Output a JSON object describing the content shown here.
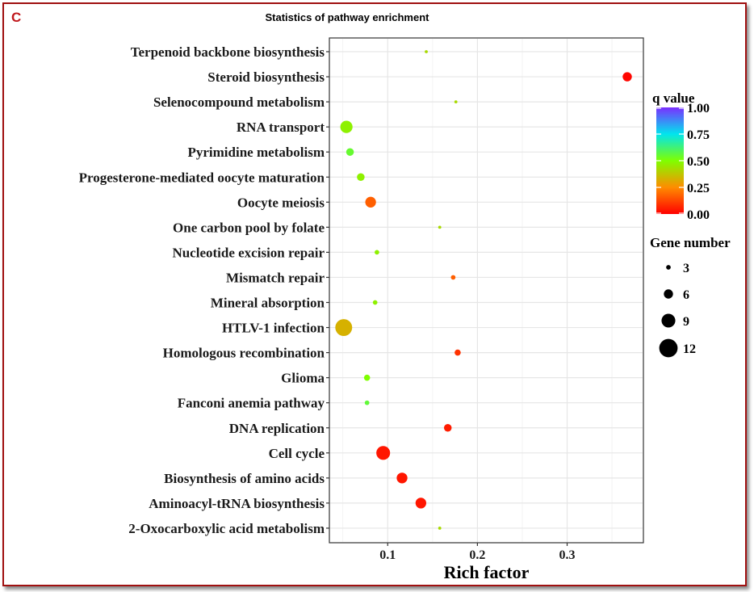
{
  "figure": {
    "panel_letter": "C",
    "frame_color": "#a01010"
  },
  "chart_data": {
    "type": "scatter",
    "title": "Statistics of pathway enrichment",
    "xlabel": "Rich factor",
    "ylabel": "",
    "xlim": [
      0.035,
      0.385
    ],
    "xticks": [
      0.1,
      0.2,
      0.3
    ],
    "xtick_labels": [
      "0.1",
      "0.2",
      "0.3"
    ],
    "grid": true,
    "categories": [
      "Terpenoid backbone biosynthesis",
      "Steroid biosynthesis",
      "Selenocompound metabolism",
      "RNA transport",
      "Pyrimidine metabolism",
      "Progesterone-mediated oocyte maturation",
      "Oocyte meiosis",
      "One carbon pool by folate",
      "Nucleotide excision repair",
      "Mismatch repair",
      "Mineral absorption",
      "HTLV-1 infection",
      "Homologous recombination",
      "Glioma",
      "Fanconi anemia pathway",
      "DNA replication",
      "Cell cycle",
      "Biosynthesis of amino acids",
      "Aminoacyl-tRNA biosynthesis",
      "2-Oxocarboxylic acid metabolism"
    ],
    "points": [
      {
        "pathway": "Terpenoid backbone biosynthesis",
        "rich_factor": 0.143,
        "gene_number": 2,
        "q_value": 0.42
      },
      {
        "pathway": "Steroid biosynthesis",
        "rich_factor": 0.367,
        "gene_number": 6,
        "q_value": 0.01
      },
      {
        "pathway": "Selenocompound metabolism",
        "rich_factor": 0.176,
        "gene_number": 2,
        "q_value": 0.42
      },
      {
        "pathway": "RNA transport",
        "rich_factor": 0.054,
        "gene_number": 8,
        "q_value": 0.47
      },
      {
        "pathway": "Pyrimidine metabolism",
        "rich_factor": 0.058,
        "gene_number": 5,
        "q_value": 0.55
      },
      {
        "pathway": "Progesterone-mediated oocyte maturation",
        "rich_factor": 0.07,
        "gene_number": 5,
        "q_value": 0.47
      },
      {
        "pathway": "Oocyte meiosis",
        "rich_factor": 0.081,
        "gene_number": 7,
        "q_value": 0.17
      },
      {
        "pathway": "One carbon pool by folate",
        "rich_factor": 0.158,
        "gene_number": 2,
        "q_value": 0.42
      },
      {
        "pathway": "Nucleotide excision repair",
        "rich_factor": 0.088,
        "gene_number": 3,
        "q_value": 0.47
      },
      {
        "pathway": "Mismatch repair",
        "rich_factor": 0.173,
        "gene_number": 3,
        "q_value": 0.17
      },
      {
        "pathway": "Mineral absorption",
        "rich_factor": 0.086,
        "gene_number": 3,
        "q_value": 0.47
      },
      {
        "pathway": "HTLV-1 infection",
        "rich_factor": 0.051,
        "gene_number": 11,
        "q_value": 0.33
      },
      {
        "pathway": "Homologous recombination",
        "rich_factor": 0.178,
        "gene_number": 4,
        "q_value": 0.09
      },
      {
        "pathway": "Glioma",
        "rich_factor": 0.077,
        "gene_number": 4,
        "q_value": 0.5
      },
      {
        "pathway": "Fanconi anemia pathway",
        "rich_factor": 0.077,
        "gene_number": 3,
        "q_value": 0.56
      },
      {
        "pathway": "DNA replication",
        "rich_factor": 0.167,
        "gene_number": 5,
        "q_value": 0.05
      },
      {
        "pathway": "Cell cycle",
        "rich_factor": 0.095,
        "gene_number": 9,
        "q_value": 0.04
      },
      {
        "pathway": "Biosynthesis of amino acids",
        "rich_factor": 0.116,
        "gene_number": 7,
        "q_value": 0.04
      },
      {
        "pathway": "Aminoacyl-tRNA biosynthesis",
        "rich_factor": 0.137,
        "gene_number": 7,
        "q_value": 0.04
      },
      {
        "pathway": "2-Oxocarboxylic acid metabolism",
        "rich_factor": 0.158,
        "gene_number": 2,
        "q_value": 0.42
      }
    ],
    "color_legend": {
      "title": "q value",
      "ticks": [
        "1.00",
        "0.75",
        "0.50",
        "0.25",
        "0.00"
      ],
      "tick_values": [
        1.0,
        0.75,
        0.5,
        0.25,
        0.0
      ],
      "gradient": [
        "#ff0000",
        "#ff8c00",
        "#7fff00",
        "#00e5ee",
        "#7b2fff"
      ]
    },
    "size_legend": {
      "title": "Gene number",
      "labels": [
        "3",
        "6",
        "9",
        "12"
      ],
      "values": [
        3,
        6,
        9,
        12
      ]
    }
  }
}
